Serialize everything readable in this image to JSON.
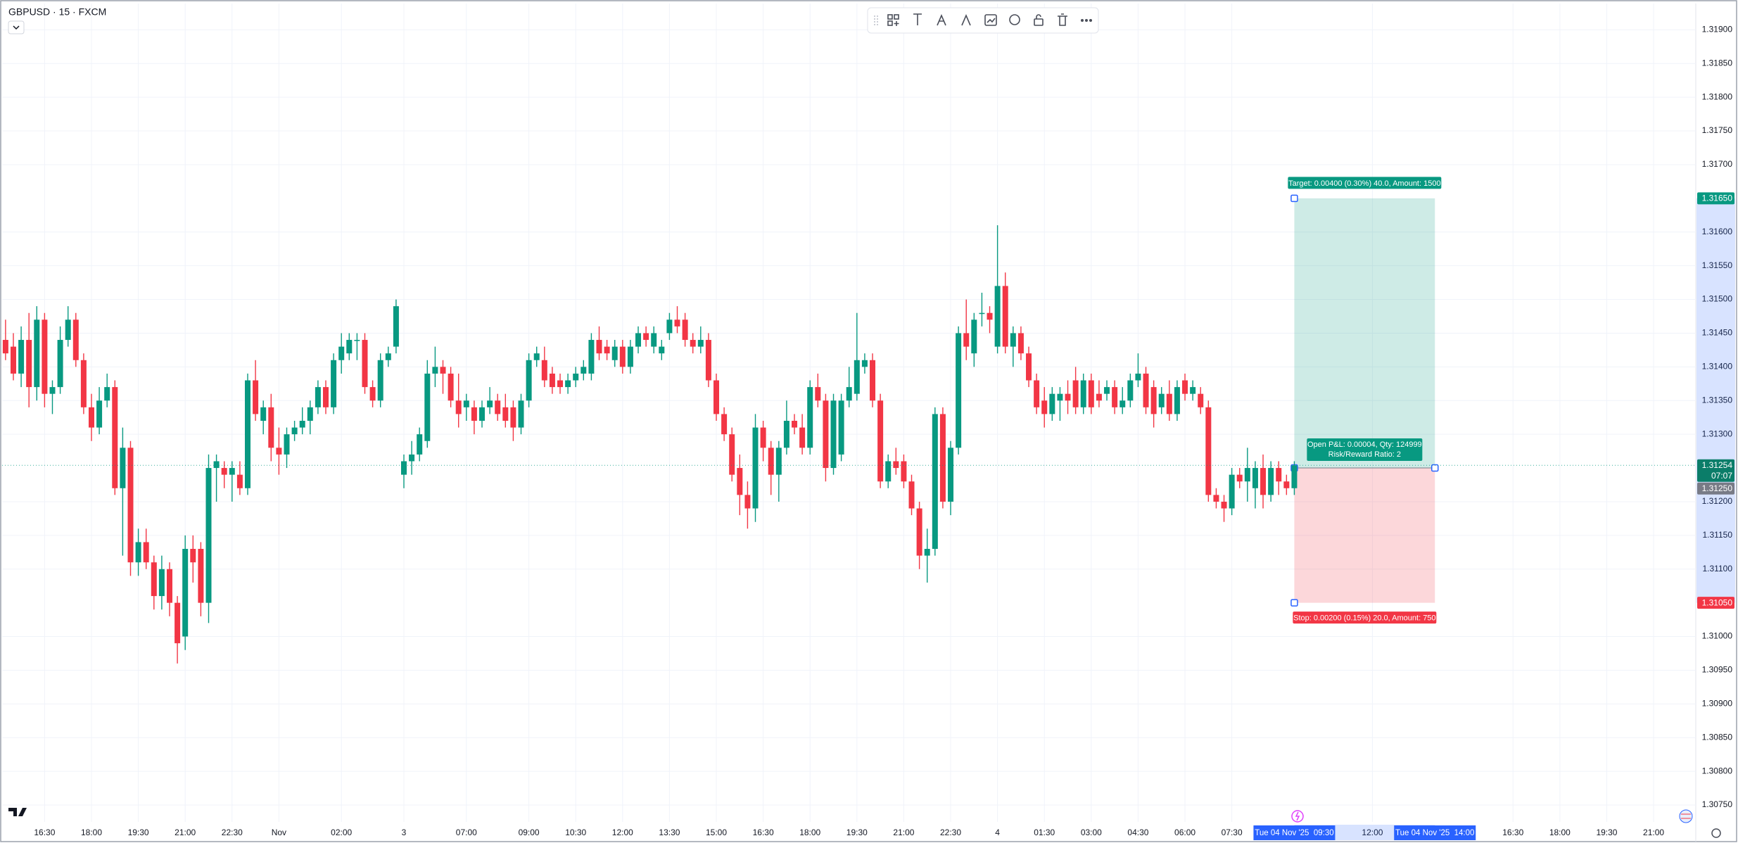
{
  "chart_data": {
    "type": "candlestick",
    "title": "GBPUSD · 15 · FXCM",
    "up_color": "#089981",
    "down_color": "#f23645",
    "grid": true,
    "xlim": [
      -0.44,
      216.4
    ],
    "ylim": [
      1.30725,
      1.31939
    ],
    "xticks": [
      {
        "value": 5,
        "label": "16:30"
      },
      {
        "value": 11,
        "label": "18:00"
      },
      {
        "value": 17,
        "label": "19:30"
      },
      {
        "value": 23,
        "label": "21:00"
      },
      {
        "value": 29,
        "label": "22:30"
      },
      {
        "value": 35,
        "label": "Nov"
      },
      {
        "value": 43,
        "label": "02:00"
      },
      {
        "value": 51,
        "label": "3"
      },
      {
        "value": 59,
        "label": "07:00"
      },
      {
        "value": 67,
        "label": "09:00"
      },
      {
        "value": 73,
        "label": "10:30"
      },
      {
        "value": 79,
        "label": "12:00"
      },
      {
        "value": 85,
        "label": "13:30"
      },
      {
        "value": 91,
        "label": "15:00"
      },
      {
        "value": 97,
        "label": "16:30"
      },
      {
        "value": 103,
        "label": "18:00"
      },
      {
        "value": 109,
        "label": "19:30"
      },
      {
        "value": 115,
        "label": "21:00"
      },
      {
        "value": 121,
        "label": "22:30"
      },
      {
        "value": 127,
        "label": "4"
      },
      {
        "value": 133,
        "label": "01:30"
      },
      {
        "value": 139,
        "label": "03:00"
      },
      {
        "value": 145,
        "label": "04:30"
      },
      {
        "value": 151,
        "label": "06:00"
      },
      {
        "value": 157,
        "label": "07:30"
      },
      {
        "value": 175,
        "label": "12:00"
      },
      {
        "value": 193,
        "label": "16:30"
      },
      {
        "value": 199,
        "label": "18:00"
      },
      {
        "value": 205,
        "label": "19:30"
      },
      {
        "value": 211,
        "label": "21:00"
      }
    ],
    "yticks": [
      {
        "value": 1.319,
        "label": "1.31900"
      },
      {
        "value": 1.3185,
        "label": "1.31850"
      },
      {
        "value": 1.318,
        "label": "1.31800"
      },
      {
        "value": 1.3175,
        "label": "1.31750"
      },
      {
        "value": 1.317,
        "label": "1.31700"
      },
      {
        "value": 1.316,
        "label": "1.31600"
      },
      {
        "value": 1.3155,
        "label": "1.31550"
      },
      {
        "value": 1.315,
        "label": "1.31500"
      },
      {
        "value": 1.3145,
        "label": "1.31450"
      },
      {
        "value": 1.314,
        "label": "1.31400"
      },
      {
        "value": 1.3135,
        "label": "1.31350"
      },
      {
        "value": 1.313,
        "label": "1.31300"
      },
      {
        "value": 1.312,
        "label": "1.31200"
      },
      {
        "value": 1.3115,
        "label": "1.31150"
      },
      {
        "value": 1.311,
        "label": "1.31100"
      },
      {
        "value": 1.31,
        "label": "1.31000"
      },
      {
        "value": 1.3095,
        "label": "1.30950"
      },
      {
        "value": 1.309,
        "label": "1.30900"
      },
      {
        "value": 1.3085,
        "label": "1.30850"
      },
      {
        "value": 1.308,
        "label": "1.30800"
      },
      {
        "value": 1.3075,
        "label": "1.30750"
      }
    ],
    "x": [
      0,
      1,
      2,
      3,
      4,
      5,
      6,
      7,
      8,
      9,
      10,
      11,
      12,
      13,
      14,
      15,
      16,
      17,
      18,
      19,
      20,
      21,
      22,
      23,
      24,
      25,
      26,
      27,
      28,
      29,
      30,
      31,
      32,
      33,
      34,
      35,
      36,
      37,
      38,
      39,
      40,
      41,
      42,
      43,
      44,
      45,
      46,
      47,
      48,
      49,
      50,
      51,
      52,
      53,
      54,
      55,
      56,
      57,
      58,
      59,
      60,
      61,
      62,
      63,
      64,
      65,
      66,
      67,
      68,
      69,
      70,
      71,
      72,
      73,
      74,
      75,
      76,
      77,
      78,
      79,
      80,
      81,
      82,
      83,
      84,
      85,
      86,
      87,
      88,
      89,
      90,
      91,
      92,
      93,
      94,
      95,
      96,
      97,
      98,
      99,
      100,
      101,
      102,
      103,
      104,
      105,
      106,
      107,
      108,
      109,
      110,
      111,
      112,
      113,
      114,
      115,
      116,
      117,
      118,
      119,
      120,
      121,
      122,
      123,
      124,
      125,
      126,
      127,
      128,
      129,
      130,
      131,
      132,
      133,
      134,
      135,
      136,
      137,
      138,
      139,
      140,
      141,
      142,
      143,
      144,
      145,
      146,
      147,
      148,
      149,
      150,
      151,
      152,
      153,
      154,
      155,
      156,
      157,
      158,
      159,
      160,
      161,
      162,
      163,
      164,
      165
    ],
    "open": [
      1.3144,
      1.3143,
      1.3139,
      1.3144,
      1.3137,
      1.3147,
      1.3136,
      1.3137,
      1.3144,
      1.3147,
      1.3141,
      1.3134,
      1.3131,
      1.3135,
      1.3137,
      1.3122,
      1.3128,
      1.3111,
      1.3114,
      1.3111,
      1.3106,
      1.311,
      1.3105,
      1.31,
      1.3113,
      1.3113,
      1.3105,
      1.3125,
      1.3125,
      1.3124,
      1.3124,
      1.3122,
      1.3138,
      1.3132,
      1.3134,
      1.3128,
      1.3127,
      1.313,
      1.3131,
      1.3132,
      1.3134,
      1.3137,
      1.3134,
      1.3141,
      1.3142,
      1.3144,
      1.3144,
      1.3137,
      1.3135,
      1.3141,
      1.3143,
      1.3124,
      1.3126,
      1.3127,
      1.3129,
      1.3139,
      1.314,
      1.3139,
      1.3135,
      1.3134,
      1.3134,
      1.3132,
      1.3134,
      1.3135,
      1.3134,
      1.3134,
      1.3131,
      1.3135,
      1.3141,
      1.3141,
      1.3139,
      1.3138,
      1.3137,
      1.3138,
      1.3139,
      1.3139,
      1.3144,
      1.3143,
      1.3141,
      1.3143,
      1.314,
      1.3143,
      1.3145,
      1.3143,
      1.3142,
      1.3145,
      1.3147,
      1.3147,
      1.3144,
      1.3143,
      1.3144,
      1.3138,
      1.3133,
      1.313,
      1.3125,
      1.3121,
      1.3119,
      1.3131,
      1.3128,
      1.3124,
      1.3128,
      1.3132,
      1.3131,
      1.3128,
      1.3137,
      1.3135,
      1.3125,
      1.3127,
      1.3135,
      1.3136,
      1.314,
      1.3141,
      1.3135,
      1.3123,
      1.3126,
      1.3126,
      1.3123,
      1.3119,
      1.3112,
      1.3113,
      1.3133,
      1.312,
      1.3128,
      1.3145,
      1.3142,
      1.3148,
      1.3148,
      1.3143,
      1.3152,
      1.3143,
      1.3145,
      1.3142,
      1.3138,
      1.3135,
      1.3133,
      1.3135,
      1.3136,
      1.3138,
      1.3134,
      1.3138,
      1.3136,
      1.3136,
      1.3137,
      1.3134,
      1.3135,
      1.3138,
      1.3139,
      1.3137,
      1.3134,
      1.3136,
      1.3133,
      1.3138,
      1.3136,
      1.3136,
      1.3134,
      1.3121,
      1.312,
      1.3119,
      1.3124,
      1.3123,
      1.3122,
      1.3125,
      1.3121,
      1.3125,
      1.3123,
      1.3122
    ],
    "high": [
      1.3147,
      1.3145,
      1.3146,
      1.3148,
      1.3149,
      1.3148,
      1.3138,
      1.3146,
      1.3149,
      1.3148,
      1.3142,
      1.3136,
      1.3137,
      1.3139,
      1.3138,
      1.3131,
      1.3129,
      1.3116,
      1.3116,
      1.3112,
      1.3112,
      1.3111,
      1.3106,
      1.3115,
      1.3115,
      1.3114,
      1.3127,
      1.3127,
      1.3126,
      1.3126,
      1.3126,
      1.3139,
      1.3141,
      1.3135,
      1.3136,
      1.3131,
      1.3131,
      1.3132,
      1.3134,
      1.3135,
      1.3138,
      1.3138,
      1.3142,
      1.3145,
      1.3145,
      1.3145,
      1.3145,
      1.3138,
      1.3142,
      1.3143,
      1.315,
      1.3127,
      1.3129,
      1.3131,
      1.3141,
      1.3143,
      1.3141,
      1.314,
      1.3139,
      1.3136,
      1.3135,
      1.3135,
      1.3137,
      1.3136,
      1.3136,
      1.3135,
      1.3136,
      1.3142,
      1.3143,
      1.3143,
      1.314,
      1.3139,
      1.3139,
      1.314,
      1.3141,
      1.3145,
      1.3146,
      1.3144,
      1.3144,
      1.3144,
      1.3144,
      1.3146,
      1.3146,
      1.3146,
      1.3144,
      1.3148,
      1.3149,
      1.3148,
      1.3145,
      1.3146,
      1.3145,
      1.3139,
      1.3134,
      1.3131,
      1.3127,
      1.3123,
      1.3133,
      1.3132,
      1.3129,
      1.3129,
      1.3135,
      1.3133,
      1.3133,
      1.3138,
      1.3139,
      1.3136,
      1.3136,
      1.3136,
      1.314,
      1.3148,
      1.3142,
      1.3142,
      1.3136,
      1.3127,
      1.3128,
      1.3127,
      1.3124,
      1.312,
      1.3116,
      1.3134,
      1.3134,
      1.3129,
      1.3146,
      1.315,
      1.3148,
      1.3151,
      1.3149,
      1.3161,
      1.3154,
      1.3146,
      1.3146,
      1.3143,
      1.3139,
      1.3137,
      1.3137,
      1.3137,
      1.3138,
      1.314,
      1.3139,
      1.3139,
      1.3138,
      1.3138,
      1.3138,
      1.3137,
      1.3139,
      1.3142,
      1.314,
      1.3138,
      1.3137,
      1.3138,
      1.3138,
      1.3139,
      1.3138,
      1.3137,
      1.3135,
      1.3122,
      1.3121,
      1.3125,
      1.3125,
      1.3128,
      1.3126,
      1.3127,
      1.3126,
      1.3126,
      1.3124,
      1.3126
    ],
    "low": [
      1.3141,
      1.3138,
      1.3137,
      1.3134,
      1.3135,
      1.3134,
      1.3133,
      1.3136,
      1.3143,
      1.314,
      1.3133,
      1.3129,
      1.313,
      1.3134,
      1.3121,
      1.3112,
      1.3109,
      1.3109,
      1.311,
      1.3104,
      1.3104,
      1.3103,
      1.3096,
      1.3098,
      1.3108,
      1.3103,
      1.3102,
      1.312,
      1.3122,
      1.312,
      1.3121,
      1.3121,
      1.3132,
      1.313,
      1.3126,
      1.3124,
      1.3125,
      1.3129,
      1.313,
      1.313,
      1.3133,
      1.3133,
      1.3133,
      1.3139,
      1.3141,
      1.3141,
      1.3136,
      1.3134,
      1.3134,
      1.314,
      1.3142,
      1.3122,
      1.3124,
      1.3126,
      1.3128,
      1.3137,
      1.3136,
      1.3134,
      1.3131,
      1.3132,
      1.313,
      1.3131,
      1.3133,
      1.3132,
      1.3131,
      1.3129,
      1.313,
      1.3134,
      1.314,
      1.3137,
      1.3136,
      1.3136,
      1.3136,
      1.3137,
      1.3138,
      1.3138,
      1.3141,
      1.3141,
      1.314,
      1.3139,
      1.3139,
      1.3142,
      1.3143,
      1.3142,
      1.3141,
      1.3144,
      1.3145,
      1.3143,
      1.3142,
      1.3142,
      1.3137,
      1.3132,
      1.3129,
      1.3123,
      1.3118,
      1.3116,
      1.3117,
      1.3126,
      1.3121,
      1.312,
      1.3127,
      1.313,
      1.3127,
      1.3127,
      1.3134,
      1.3123,
      1.3124,
      1.3126,
      1.3134,
      1.3135,
      1.3139,
      1.3134,
      1.3122,
      1.3122,
      1.3124,
      1.3122,
      1.3118,
      1.311,
      1.3108,
      1.3112,
      1.3119,
      1.3118,
      1.3127,
      1.3141,
      1.314,
      1.3146,
      1.3145,
      1.3142,
      1.3142,
      1.314,
      1.3141,
      1.3137,
      1.3133,
      1.3131,
      1.3132,
      1.3132,
      1.3133,
      1.3133,
      1.3133,
      1.3133,
      1.3134,
      1.3135,
      1.3133,
      1.3133,
      1.3134,
      1.3137,
      1.3133,
      1.3131,
      1.3133,
      1.3132,
      1.3132,
      1.3135,
      1.3135,
      1.3133,
      1.312,
      1.3119,
      1.3117,
      1.3118,
      1.3122,
      1.312,
      1.3119,
      1.3119,
      1.312,
      1.3121,
      1.3121,
      1.3121
    ],
    "close": [
      1.3142,
      1.3139,
      1.3144,
      1.3137,
      1.3147,
      1.3136,
      1.3137,
      1.3144,
      1.3147,
      1.3141,
      1.3134,
      1.3131,
      1.3135,
      1.3137,
      1.3122,
      1.3128,
      1.3111,
      1.3114,
      1.3111,
      1.3106,
      1.311,
      1.3105,
      1.3099,
      1.3113,
      1.3111,
      1.3105,
      1.3125,
      1.3126,
      1.3124,
      1.3125,
      1.3122,
      1.3138,
      1.3133,
      1.3134,
      1.3128,
      1.3127,
      1.313,
      1.3131,
      1.3132,
      1.3134,
      1.3137,
      1.3134,
      1.3141,
      1.3143,
      1.3144,
      1.3144,
      1.3137,
      1.3135,
      1.3141,
      1.3142,
      1.3149,
      1.3126,
      1.3127,
      1.313,
      1.3139,
      1.314,
      1.3139,
      1.3135,
      1.3133,
      1.3135,
      1.3132,
      1.3134,
      1.3135,
      1.3133,
      1.3132,
      1.3131,
      1.3135,
      1.3141,
      1.3142,
      1.3138,
      1.3137,
      1.3137,
      1.3138,
      1.3139,
      1.314,
      1.3144,
      1.3142,
      1.3142,
      1.3143,
      1.314,
      1.3143,
      1.3145,
      1.3144,
      1.3145,
      1.3143,
      1.3147,
      1.3146,
      1.3144,
      1.3143,
      1.3144,
      1.3138,
      1.3133,
      1.313,
      1.3124,
      1.3121,
      1.3119,
      1.3131,
      1.3128,
      1.3124,
      1.3128,
      1.3132,
      1.3131,
      1.3128,
      1.3137,
      1.3135,
      1.3125,
      1.3135,
      1.3135,
      1.3137,
      1.3141,
      1.3141,
      1.3135,
      1.3123,
      1.3126,
      1.3125,
      1.3123,
      1.3119,
      1.3112,
      1.3113,
      1.3133,
      1.312,
      1.3128,
      1.3145,
      1.3143,
      1.3147,
      1.3148,
      1.3147,
      1.3152,
      1.3143,
      1.3145,
      1.3142,
      1.3138,
      1.3134,
      1.3133,
      1.3136,
      1.3136,
      1.3135,
      1.3134,
      1.3138,
      1.3134,
      1.3135,
      1.3137,
      1.3134,
      1.3135,
      1.3138,
      1.3139,
      1.3134,
      1.3133,
      1.3136,
      1.3133,
      1.3137,
      1.3136,
      1.3137,
      1.3134,
      1.3121,
      1.312,
      1.3119,
      1.3124,
      1.3123,
      1.3125,
      1.3125,
      1.3121,
      1.3125,
      1.3123,
      1.3122,
      1.31254
    ],
    "price_labels": [
      {
        "value": 1.3165,
        "label": "1.31650",
        "color": "#089981"
      },
      {
        "value": 1.31254,
        "label": "1.31254",
        "sublabel": "07:07",
        "color": "#0b7d69"
      },
      {
        "value": 1.3125,
        "label": "1.31250",
        "color": "#787b86"
      },
      {
        "value": 1.3105,
        "label": "1.31050",
        "color": "#f23645"
      }
    ],
    "position": {
      "entry": 1.3125,
      "target": 1.3165,
      "stop": 1.3105,
      "target_label": "Target: 0.00400 (0.30%) 40.0, Amount: 1500",
      "pnl_label": "Open P&L: 0.00004, Qty: 124999",
      "rr_label": "Risk/Reward Ratio: 2",
      "stop_label": "Stop: 0.00200 (0.15%) 20.0, Amount: 750",
      "time_labels": [
        {
          "value": 165,
          "label": "Tue 04 Nov '25  09:30"
        },
        {
          "value": 183,
          "label": "Tue 04 Nov '25  14:00"
        }
      ]
    }
  }
}
